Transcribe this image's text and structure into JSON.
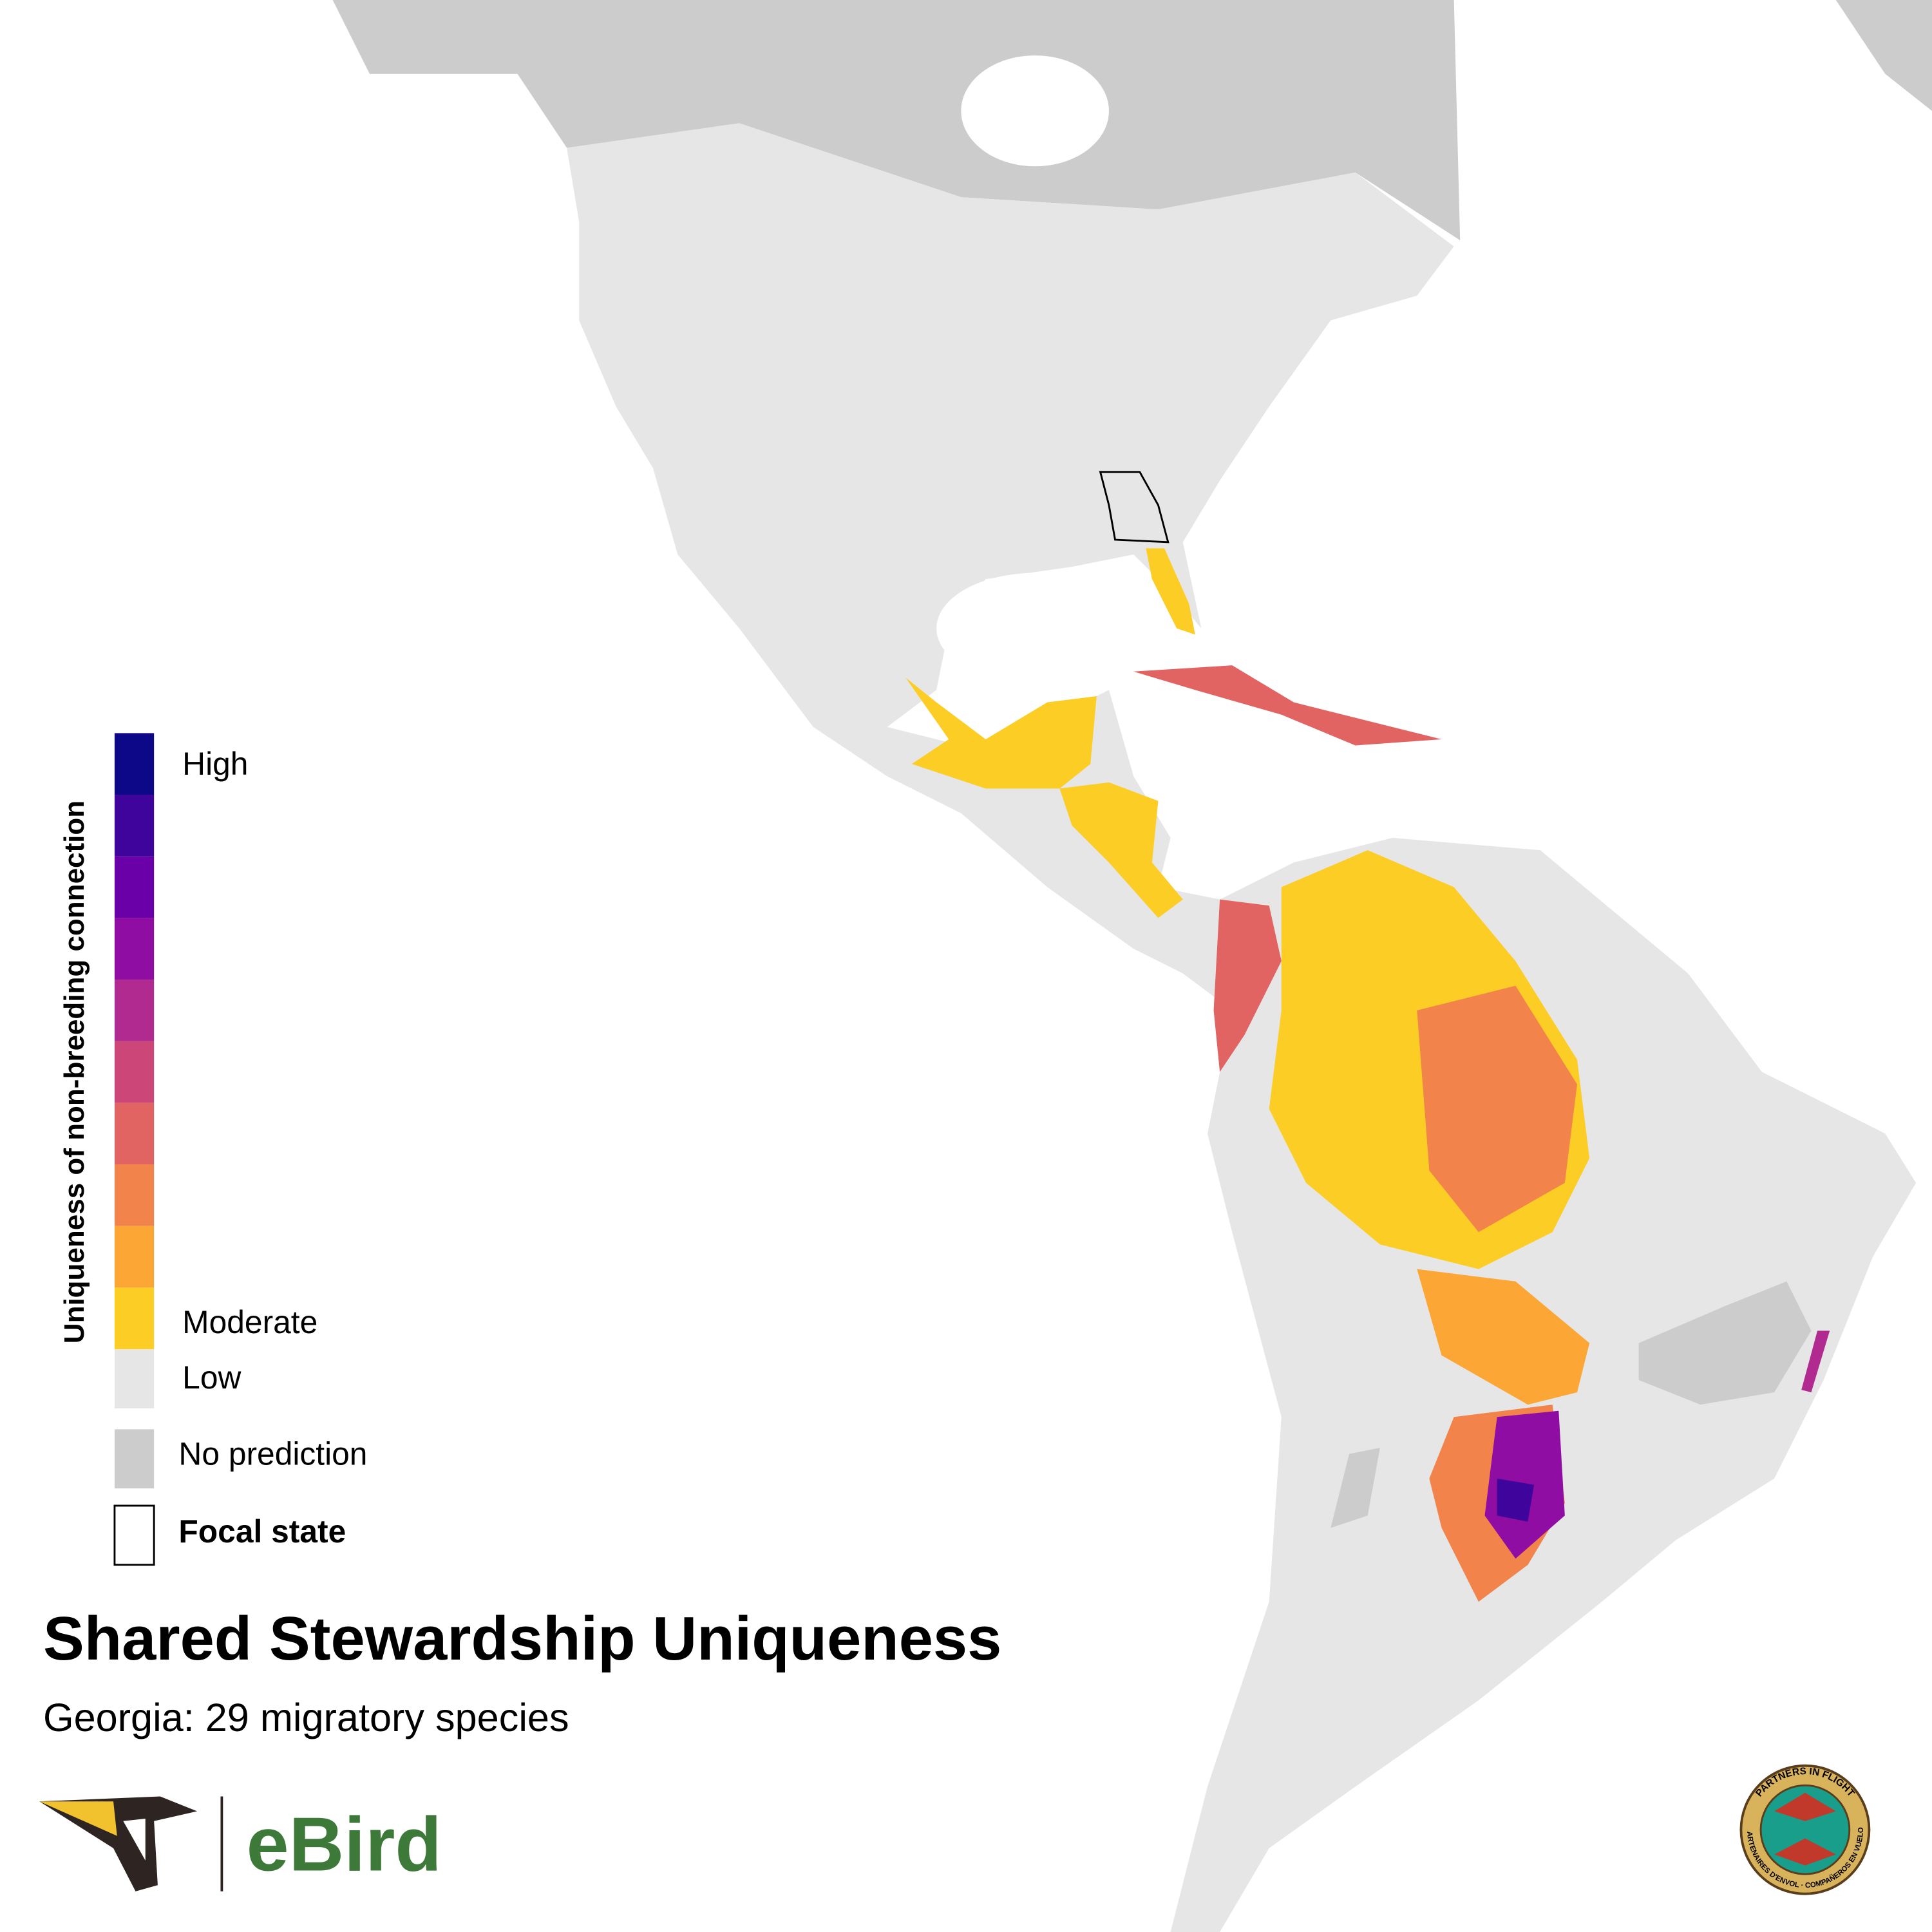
{
  "map": {
    "title": "Shared Stewardship Uniqueness",
    "subtitle": "Georgia: 29 migratory species",
    "legend": {
      "title": "Uniqueness of non-breeding connection",
      "high_label": "High",
      "moderate_label": "Moderate",
      "low_label": "Low",
      "no_prediction_label": "No prediction",
      "focal_label": "Focal state",
      "scale_colors": [
        "#0d0887",
        "#3e049c",
        "#6a00a8",
        "#900da4",
        "#b12a90",
        "#cc4778",
        "#e16462",
        "#f2844b",
        "#fca636",
        "#fccd25"
      ],
      "low_color": "#e6e6e6",
      "no_prediction_color": "#cccccc"
    },
    "logo": "eBird",
    "seal": {
      "top_text": "PARTNERS IN FLIGHT",
      "bottom_text": "PARTENAIRES D'ENVOL · COMPAÑEROS EN VUELO"
    }
  }
}
